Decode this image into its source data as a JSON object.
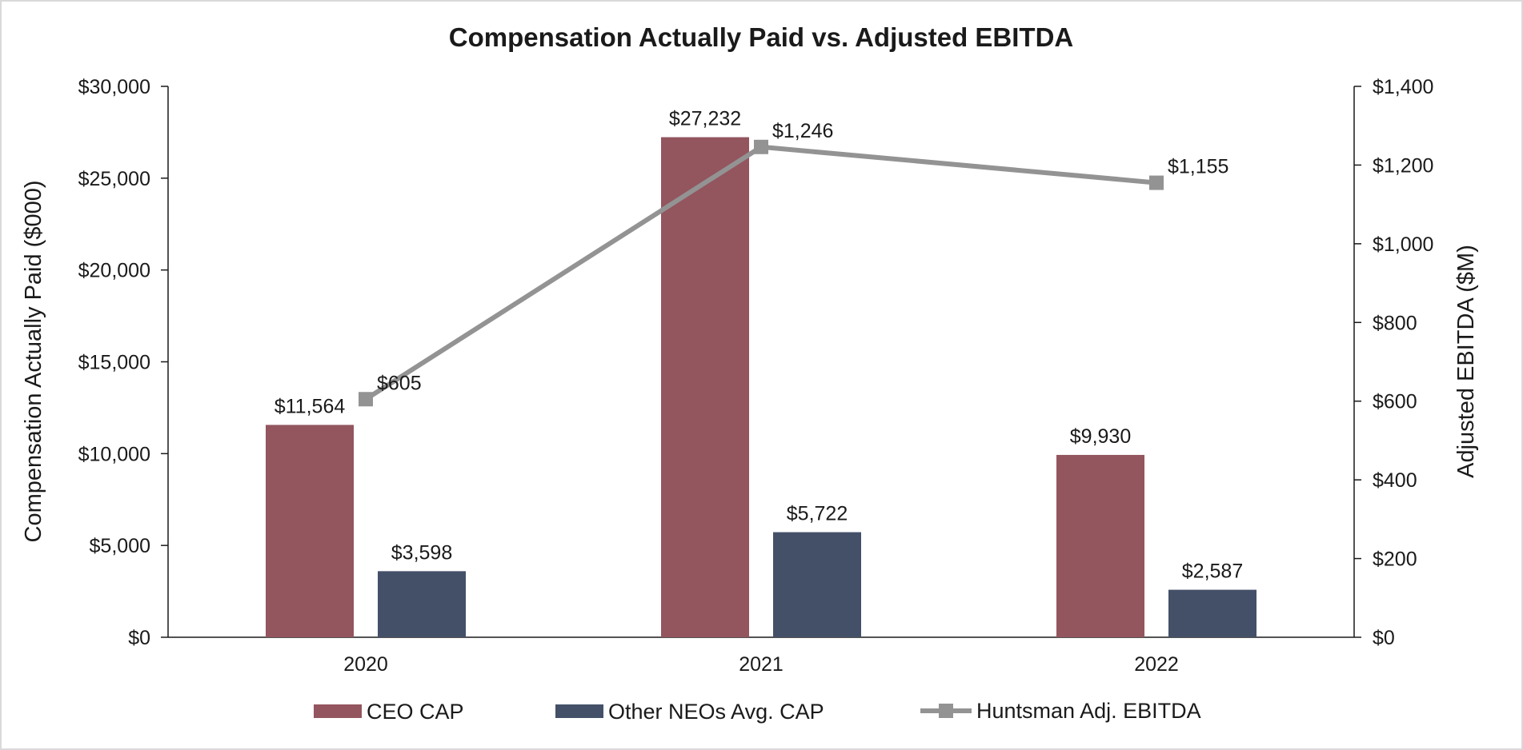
{
  "chart_data": {
    "type": "bar",
    "title": "Compensation Actually Paid vs. Adjusted EBITDA",
    "categories": [
      "2020",
      "2021",
      "2022"
    ],
    "xlabel": "",
    "ylabel": "Compensation Actually Paid ($000)",
    "y2label": "Adjusted EBITDA ($M)",
    "ylim": [
      0,
      30000
    ],
    "y2lim": [
      0,
      1400
    ],
    "yticks": [
      "$0",
      "$5,000",
      "$10,000",
      "$15,000",
      "$20,000",
      "$25,000",
      "$30,000"
    ],
    "y2ticks": [
      "$0",
      "$200",
      "$400",
      "$600",
      "$800",
      "$1,000",
      "$1,200",
      "$1,400"
    ],
    "legend_position": "bottom",
    "series": [
      {
        "name": "CEO CAP",
        "type": "bar",
        "axis": "left",
        "color": "#93555e",
        "values": [
          11564,
          27232,
          9930
        ],
        "labels": [
          "$11,564",
          "$27,232",
          "$9,930"
        ]
      },
      {
        "name": "Other NEOs Avg. CAP",
        "type": "bar",
        "axis": "left",
        "color": "#445068",
        "values": [
          3598,
          5722,
          2587
        ],
        "labels": [
          "$3,598",
          "$5,722",
          "$2,587"
        ]
      },
      {
        "name": "Huntsman Adj. EBITDA",
        "type": "line",
        "axis": "right",
        "color": "#939393",
        "marker": "square",
        "values": [
          605,
          1246,
          1155
        ],
        "labels": [
          "$605",
          "$1,246",
          "$1,155"
        ]
      }
    ]
  }
}
